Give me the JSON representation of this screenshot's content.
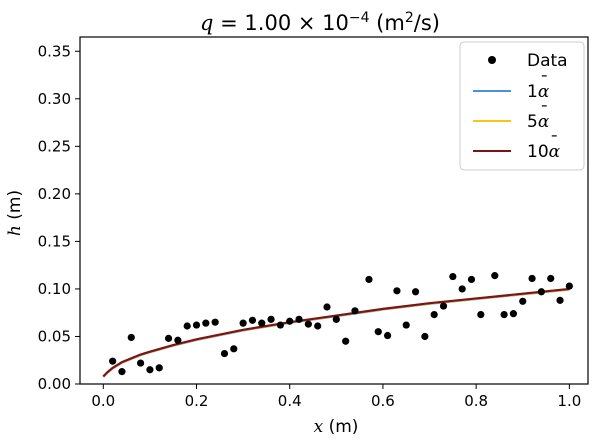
{
  "chart_data": {
    "type": "scatter",
    "title_prefix": "q",
    "title_value": " = 1.00 × 10",
    "title_exp": "−4",
    "title_units": " (m",
    "title_units_sup": "2",
    "title_units_end": "/s)",
    "xlabel_var": "x",
    "xlabel_unit": " (m)",
    "ylabel_var": "h",
    "ylabel_unit": " (m)",
    "xlim": [
      -0.05,
      1.04
    ],
    "ylim": [
      0.0,
      0.365
    ],
    "x_ticks": [
      0.0,
      0.2,
      0.4,
      0.6,
      0.8,
      1.0
    ],
    "x_tick_labels": [
      "0.0",
      "0.2",
      "0.4",
      "0.6",
      "0.8",
      "1.0"
    ],
    "y_ticks": [
      0.0,
      0.05,
      0.1,
      0.15,
      0.2,
      0.25,
      0.3,
      0.35
    ],
    "y_tick_labels": [
      "0.00",
      "0.05",
      "0.10",
      "0.15",
      "0.20",
      "0.25",
      "0.30",
      "0.35"
    ],
    "legend_position": "top-right",
    "series": [
      {
        "name": "Data",
        "kind": "points",
        "color": "#000000",
        "x": [
          0.02,
          0.04,
          0.06,
          0.08,
          0.1,
          0.12,
          0.14,
          0.16,
          0.18,
          0.2,
          0.22,
          0.24,
          0.26,
          0.28,
          0.3,
          0.32,
          0.34,
          0.36,
          0.38,
          0.4,
          0.42,
          0.44,
          0.46,
          0.48,
          0.5,
          0.52,
          0.54,
          0.57,
          0.59,
          0.61,
          0.63,
          0.65,
          0.67,
          0.69,
          0.71,
          0.73,
          0.75,
          0.77,
          0.79,
          0.81,
          0.84,
          0.86,
          0.88,
          0.9,
          0.92,
          0.94,
          0.96,
          0.98,
          1.0
        ],
        "y": [
          0.024,
          0.013,
          0.049,
          0.022,
          0.015,
          0.017,
          0.048,
          0.046,
          0.061,
          0.062,
          0.064,
          0.065,
          0.032,
          0.037,
          0.064,
          0.067,
          0.064,
          0.068,
          0.062,
          0.066,
          0.068,
          0.063,
          0.061,
          0.081,
          0.068,
          0.045,
          0.077,
          0.11,
          0.055,
          0.051,
          0.098,
          0.062,
          0.097,
          0.05,
          0.073,
          0.082,
          0.113,
          0.1,
          0.11,
          0.073,
          0.114,
          0.073,
          0.074,
          0.087,
          0.111,
          0.097,
          0.111,
          0.088,
          0.103
        ]
      },
      {
        "name": "1",
        "name_accent": "α",
        "kind": "line",
        "color": "#4a90e2"
      },
      {
        "name": "5",
        "name_accent": "α",
        "kind": "line",
        "color": "#f5c518"
      },
      {
        "name": "10",
        "name_accent": "α",
        "kind": "line",
        "color": "#7b1414"
      }
    ],
    "fit_curve": {
      "x": [
        0.0,
        0.01,
        0.02,
        0.04,
        0.06,
        0.08,
        0.1,
        0.15,
        0.2,
        0.25,
        0.3,
        0.4,
        0.5,
        0.6,
        0.7,
        0.8,
        0.9,
        1.0
      ],
      "y": [
        0.008,
        0.013,
        0.017,
        0.023,
        0.027,
        0.031,
        0.034,
        0.041,
        0.047,
        0.052,
        0.057,
        0.065,
        0.072,
        0.079,
        0.085,
        0.09,
        0.095,
        0.1
      ]
    }
  }
}
